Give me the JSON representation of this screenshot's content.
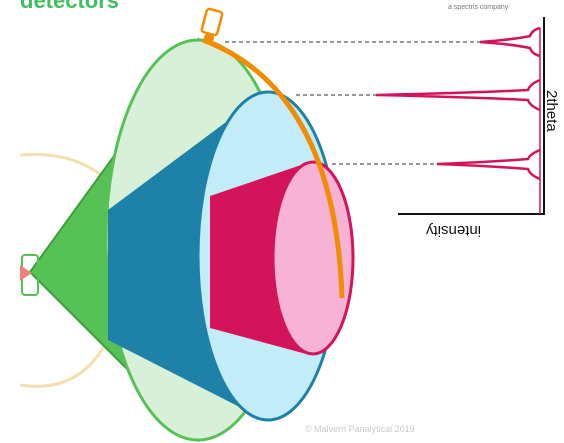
{
  "header": {
    "title": "detectors",
    "tagline": "a spectris company"
  },
  "plot": {
    "ylabel": "intensity",
    "xlabel": "2theta"
  },
  "footer": {
    "copyright": "© Malvern Panalytical 2019"
  },
  "colors": {
    "outer_cone": "#56c256",
    "outer_face": "#d8f0d8",
    "middle_cone": "#1e82a8",
    "middle_face": "#c2ecf7",
    "inner_cone": "#d4145a",
    "inner_face": "#f7b3d6",
    "detector_arc": "#f28c00",
    "peak_color": "#d4145a",
    "logo_green": "#3fbf5f"
  },
  "icons": [
    "detector-box-icon",
    "sample-holder-icon"
  ]
}
